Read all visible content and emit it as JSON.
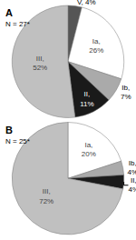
{
  "chart_data": [
    {
      "type": "pie",
      "title": "A",
      "subtitle": "N = 27*",
      "categories": [
        "V",
        "Ia",
        "Ib",
        "II",
        "III"
      ],
      "values": [
        4,
        26,
        7,
        11,
        52
      ],
      "value_labels": [
        "V, 4%",
        "Ia,\n26%",
        "Ib,\n7%",
        "II,\n11%",
        "III,\n52%"
      ],
      "colors": [
        "#555555",
        "#ffffff",
        "#aaaaaa",
        "#1a1a1a",
        "#c0c0c0"
      ],
      "data_labels": true
    },
    {
      "type": "pie",
      "title": "B",
      "subtitle": "N = 25*",
      "categories": [
        "Ia",
        "Ib",
        "II",
        "III"
      ],
      "values": [
        20,
        4,
        4,
        72
      ],
      "value_labels": [
        "Ia,\n20%",
        "Ib,\n4%",
        "II,\n4%",
        "III,\n72%"
      ],
      "colors": [
        "#ffffff",
        "#aaaaaa",
        "#1a1a1a",
        "#c0c0c0"
      ],
      "data_labels": true
    }
  ]
}
